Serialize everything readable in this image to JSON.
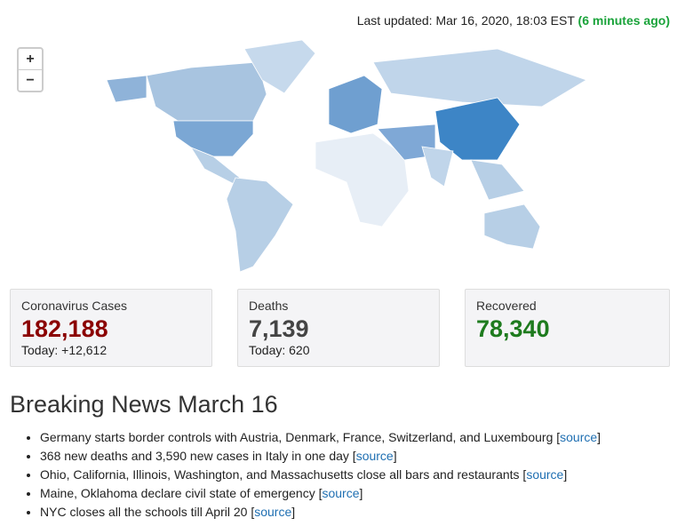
{
  "header": {
    "last_updated": "Last updated: Mar 16, 2020, 18:03 EST",
    "ago": "(6 minutes ago)"
  },
  "map_controls": {
    "zoom_in": "+",
    "zoom_out": "−"
  },
  "stats": [
    {
      "label": "Coronavirus Cases",
      "value": "182,188",
      "today": "Today: +12,612"
    },
    {
      "label": "Deaths",
      "value": "7,139",
      "today": "Today: 620"
    },
    {
      "label": "Recovered",
      "value": "78,340"
    }
  ],
  "news": {
    "title": "Breaking News March 16",
    "items": [
      {
        "text": "Germany starts border controls with Austria, Denmark, France, Switzerland, and Luxembourg [",
        "link": "source",
        "close": "]"
      },
      {
        "text": "368 new deaths and 3,590 new cases in Italy in one day [",
        "link": "source",
        "close": "]"
      },
      {
        "text": "Ohio, California, Illinois, Washington, and Massachusetts close all bars and restaurants [",
        "link": "source",
        "close": "]"
      },
      {
        "text": "Maine, Oklahoma declare civil state of emergency [",
        "link": "source",
        "close": "]"
      },
      {
        "text": "NYC closes all the schools till April 20 [",
        "link": "source",
        "close": "]"
      }
    ]
  }
}
